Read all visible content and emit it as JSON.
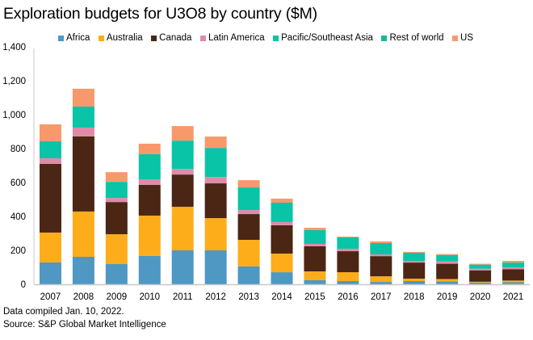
{
  "chart_data": {
    "type": "bar",
    "stacked": true,
    "title": "Exploration budgets for U3O8 by country ($M)",
    "xlabel": "",
    "ylabel": "",
    "ylim": [
      0,
      1400
    ],
    "yticks": [
      0,
      200,
      400,
      600,
      800,
      1000,
      1200,
      1400
    ],
    "ytick_labels": [
      "0",
      "200",
      "400",
      "600",
      "800",
      "1,000",
      "1,200",
      "1,400"
    ],
    "grid": false,
    "legend_position": "top",
    "categories": [
      "2007",
      "2008",
      "2009",
      "2010",
      "2011",
      "2012",
      "2013",
      "2014",
      "2015",
      "2016",
      "2017",
      "2018",
      "2019",
      "2020",
      "2021"
    ],
    "series": [
      {
        "name": "Africa",
        "color": "#4e98c3",
        "values": [
          129,
          162,
          119,
          167,
          200,
          200,
          105,
          71,
          24,
          19,
          14,
          19,
          17,
          10,
          12
        ]
      },
      {
        "name": "Australia",
        "color": "#fdad1a",
        "values": [
          176,
          267,
          176,
          238,
          257,
          190,
          157,
          110,
          52,
          52,
          33,
          14,
          14,
          5,
          10
        ]
      },
      {
        "name": "Canada",
        "color": "#4b2615",
        "values": [
          405,
          443,
          190,
          181,
          190,
          205,
          152,
          167,
          148,
          124,
          119,
          95,
          90,
          67,
          67
        ]
      },
      {
        "name": "Latin America",
        "color": "#df8ba8",
        "values": [
          33,
          52,
          24,
          33,
          33,
          38,
          24,
          19,
          14,
          14,
          10,
          10,
          14,
          10,
          10
        ]
      },
      {
        "name": "Pacific/Southeast Asia",
        "color": "#09c4a6",
        "values": [
          100,
          124,
          95,
          148,
          167,
          171,
          133,
          114,
          81,
          67,
          67,
          48,
          38,
          24,
          29
        ]
      },
      {
        "name": "Rest of world",
        "color": "#16b99d",
        "values": [
          0,
          0,
          0,
          0,
          0,
          0,
          0,
          0,
          0,
          0,
          0,
          0,
          0,
          0,
          0
        ]
      },
      {
        "name": "US",
        "color": "#f7996b",
        "values": [
          100,
          105,
          57,
          62,
          86,
          67,
          43,
          24,
          14,
          5,
          10,
          5,
          5,
          5,
          10
        ]
      }
    ]
  },
  "footer": {
    "note": "Data compiled Jan. 10, 2022.",
    "source": "Source: S&P Global Market Intelligence"
  }
}
